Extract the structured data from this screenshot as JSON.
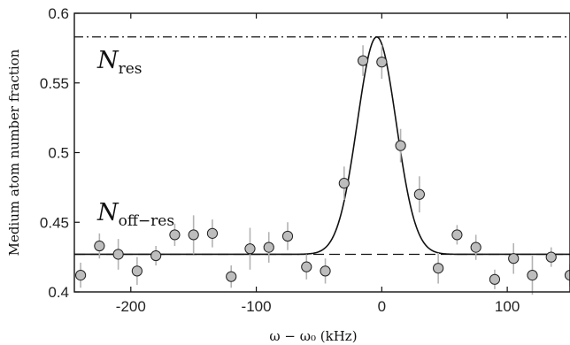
{
  "chart_data": {
    "type": "scatter",
    "xlabel": "ω − ω₀ (kHz)",
    "ylabel": "Medium atom number fraction",
    "xlim": [
      -245,
      150
    ],
    "ylim": [
      0.4,
      0.6
    ],
    "xticks": [
      -200,
      -100,
      0,
      100
    ],
    "xtick_labels": [
      "-200",
      "-100",
      "0",
      "100"
    ],
    "yticks": [
      0.4,
      0.45,
      0.5,
      0.55,
      0.6
    ],
    "ytick_labels": [
      "0.4",
      "0.45",
      "0.5",
      "0.55",
      "0.6"
    ],
    "grid": false,
    "series": [
      {
        "marker": "circle",
        "x": [
          -240,
          -225,
          -210,
          -195,
          -180,
          -165,
          -150,
          -135,
          -120,
          -105,
          -90,
          -75,
          -60,
          -45,
          -30,
          -15,
          0,
          15,
          30,
          45,
          60,
          75,
          90,
          105,
          120,
          135,
          150
        ],
        "y": [
          0.412,
          0.433,
          0.427,
          0.415,
          0.426,
          0.441,
          0.441,
          0.442,
          0.411,
          0.431,
          0.432,
          0.44,
          0.418,
          0.415,
          0.478,
          0.566,
          0.565,
          0.505,
          0.47,
          0.417,
          0.441,
          0.432,
          0.409,
          0.424,
          0.412,
          0.425,
          0.412
        ],
        "err": [
          0.009,
          0.009,
          0.011,
          0.01,
          0.007,
          0.008,
          0.014,
          0.01,
          0.008,
          0.015,
          0.011,
          0.01,
          0.009,
          0.009,
          0.012,
          0.011,
          0.012,
          0.012,
          0.013,
          0.011,
          0.007,
          0.009,
          0.007,
          0.011,
          0.014,
          0.007,
          0.008
        ]
      }
    ],
    "fit": {
      "style": "solid",
      "baseline": 0.427,
      "peak": 0.583,
      "center": -4,
      "sigma": 15.5
    },
    "reference_lines": [
      {
        "y": 0.583,
        "style": "dashdot"
      },
      {
        "y": 0.427,
        "style": "dashed"
      }
    ],
    "annotations": [
      {
        "symbol": "N",
        "subscript": "res"
      },
      {
        "symbol": "N",
        "subscript": "off−res"
      }
    ]
  }
}
